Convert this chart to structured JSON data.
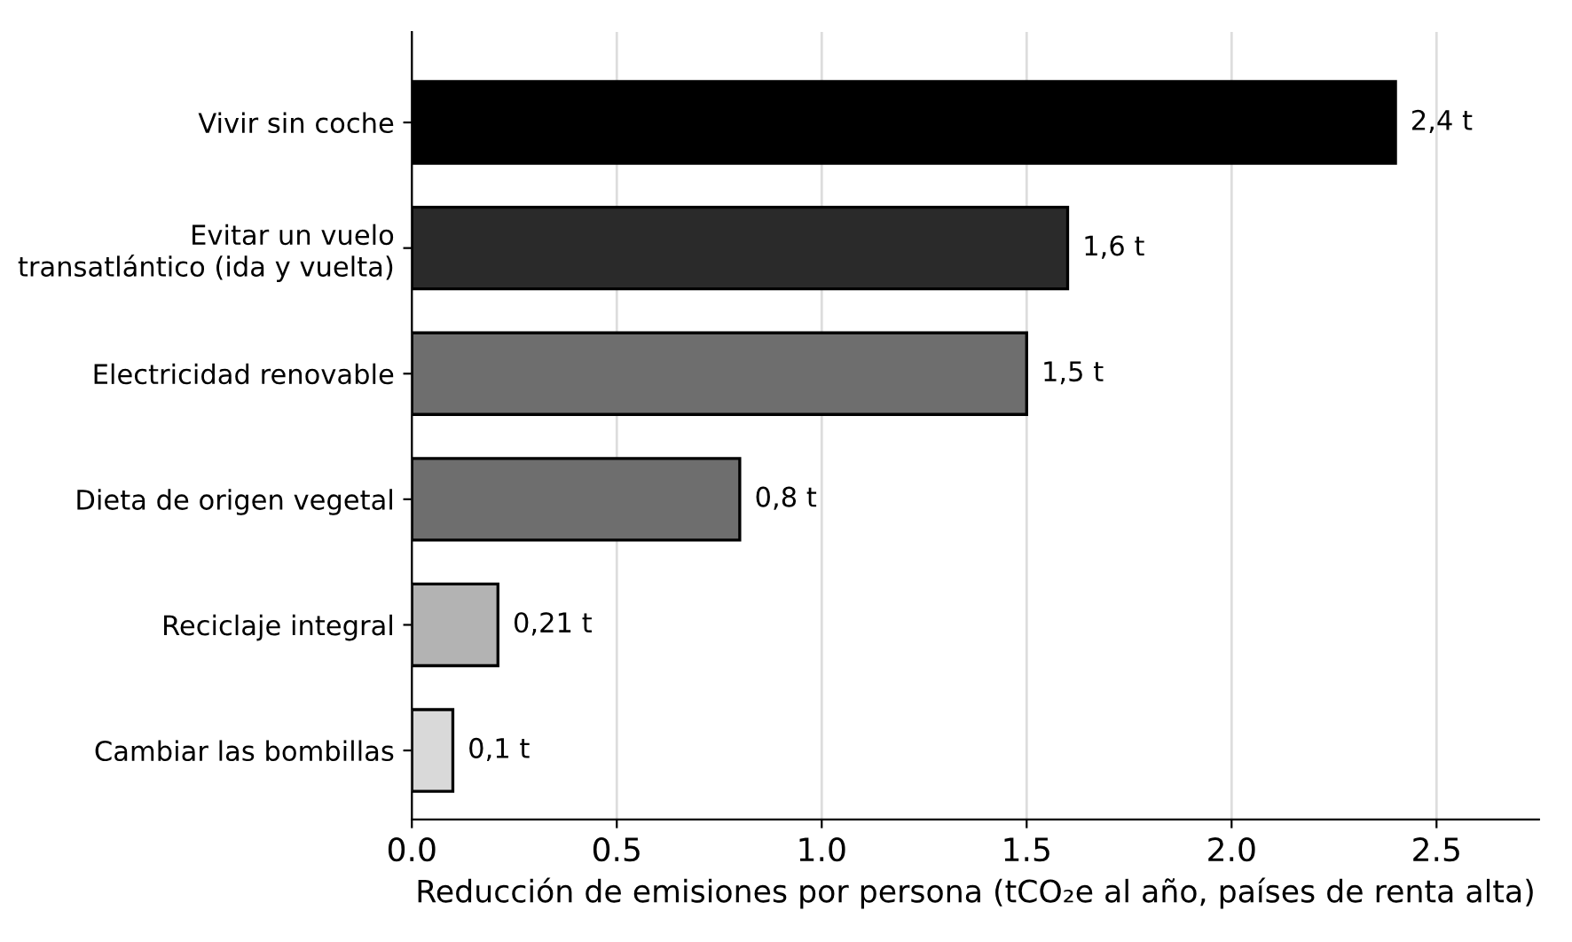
{
  "chart_data": {
    "type": "bar",
    "orientation": "horizontal",
    "xlabel": "Reducción de emisiones por persona (tCO₂e al año, países de renta alta)",
    "categories": [
      "Vivir sin coche",
      "Evitar un vuelo\ntransatlántico (ida y vuelta)",
      "Electricidad renovable",
      "Dieta de origen vegetal",
      "Reciclaje integral",
      "Cambiar las bombillas"
    ],
    "values": [
      2.4,
      1.6,
      1.5,
      0.8,
      0.21,
      0.1
    ],
    "colors": [
      "#000000",
      "#2a2a2a",
      "#6e6e6e",
      "#6e6e6e",
      "#b3b3b3",
      "#d9d9d9"
    ],
    "value_labels": [
      "2,4 t",
      "1,6 t",
      "1,5 t",
      "0,8 t",
      "0,21 t",
      "0,1 t"
    ],
    "xlim": [
      0,
      2.75
    ],
    "xticks": [
      {
        "value": 0,
        "label": "0.0"
      },
      {
        "value": 0.5,
        "label": "0.5"
      },
      {
        "value": 1.0,
        "label": "1.0"
      },
      {
        "value": 1.5,
        "label": "1.5"
      },
      {
        "value": 2.0,
        "label": "2.0"
      },
      {
        "value": 2.5,
        "label": "2.5"
      }
    ],
    "grid": "x",
    "legend": false
  }
}
